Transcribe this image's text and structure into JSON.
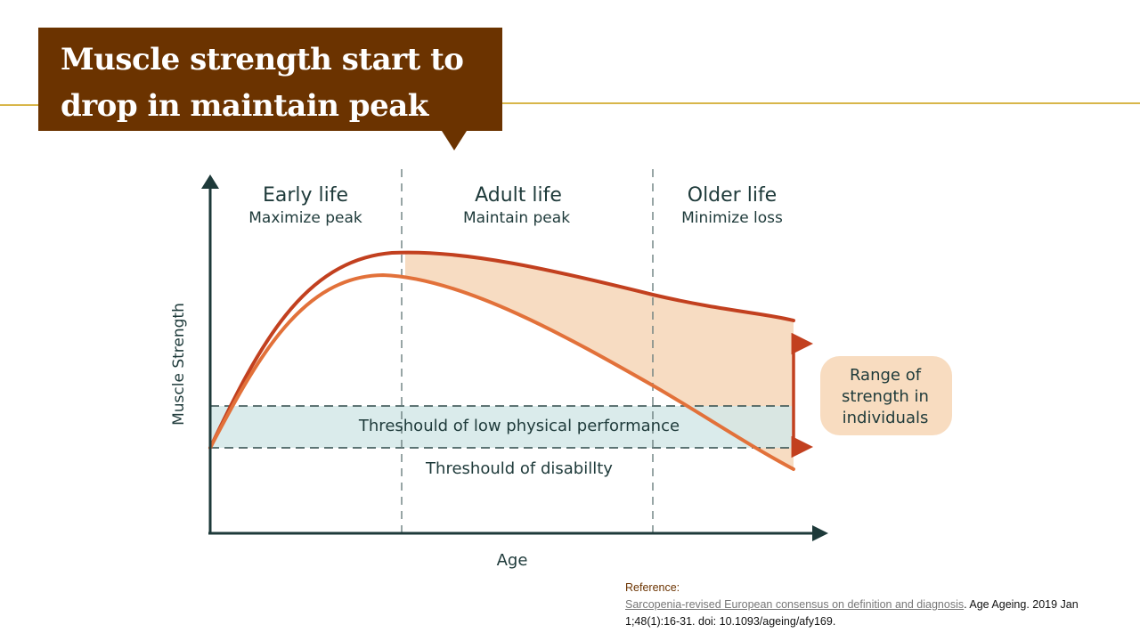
{
  "slide": {
    "title_line1": "Muscle strength start to",
    "title_line2": "drop in maintain peak"
  },
  "diagram": {
    "y_axis_label": "Muscle Strength",
    "x_axis_label": "Age",
    "phases": [
      {
        "heading": "Early life",
        "subheading": "Maximize peak"
      },
      {
        "heading": "Adult life",
        "subheading": "Maintain peak"
      },
      {
        "heading": "Older life",
        "subheading": "Minimize loss"
      }
    ],
    "band_label": "Threshould of low physical performance",
    "disability_label": "Threshould of disabillty",
    "range_label_lines": [
      "Range of",
      "strength in",
      "individuals"
    ],
    "colors": {
      "upper_curve": "#c2401f",
      "lower_curve": "#e2713a",
      "range_fill": "#f7dcc2",
      "band_fill": "#d4e7e7",
      "axis": "#1e3a3a",
      "arrow": "#c2401f",
      "range_box": "#f8dcc0"
    }
  },
  "reference": {
    "heading": "Reference:",
    "link_text": "Sarcopenia-revised European consensus on definition and diagnosis",
    "citation": ". Age Ageing. 2019 Jan 1;48(1):16-31. doi: 10.1093/ageing/afy169."
  }
}
